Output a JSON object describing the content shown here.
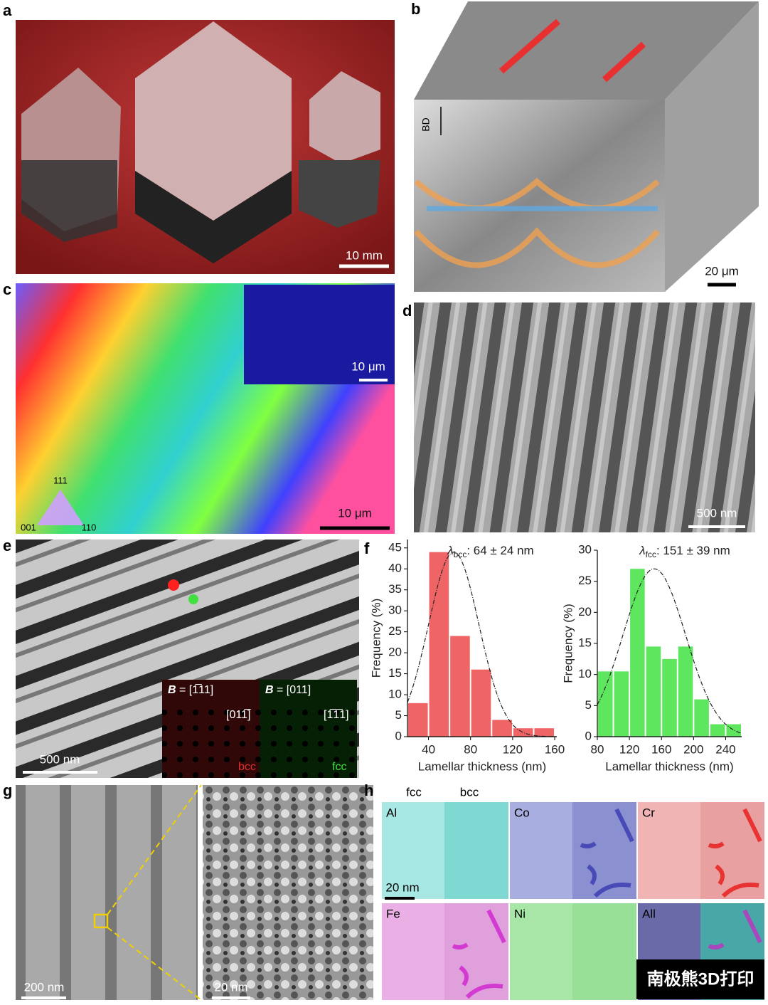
{
  "chart_data": [
    {
      "type": "histogram",
      "title": {
        "symbol": "λ",
        "subscript": "bcc",
        "text": ": 64 ± 24 nm"
      },
      "x_label": "Lamellar thickness (nm)",
      "y_label": "Frequency (%)",
      "bins": [
        20,
        40,
        60,
        80,
        100,
        120,
        140,
        160
      ],
      "values": [
        8,
        44,
        24,
        16,
        4,
        2,
        2
      ],
      "color": "#ef6464",
      "xlim": [
        20,
        162
      ],
      "ylim": [
        0,
        47
      ],
      "xticks": [
        40,
        80,
        120,
        160
      ],
      "yticks": [
        0,
        5,
        10,
        15,
        20,
        25,
        30,
        35,
        40,
        45
      ],
      "fit_mean": 64,
      "fit_sd": 24,
      "fit_peak": 44
    },
    {
      "type": "histogram",
      "title": {
        "symbol": "λ",
        "subscript": "fcc",
        "text": ": 151 ± 39 nm"
      },
      "x_label": "Lamellar thickness (nm)",
      "y_label": "Frequency (%)",
      "bins": [
        80,
        100,
        120,
        140,
        160,
        180,
        200,
        220,
        240,
        260
      ],
      "values": [
        10.5,
        10.5,
        27,
        14.5,
        12.5,
        14.5,
        6,
        2,
        2
      ],
      "color": "#5ee65e",
      "xlim": [
        80,
        260
      ],
      "ylim": [
        0,
        30
      ],
      "xticks": [
        80,
        120,
        160,
        200,
        240
      ],
      "yticks": [
        0,
        5,
        10,
        15,
        20,
        25,
        30
      ],
      "fit_mean": 151,
      "fit_sd": 39,
      "fit_peak": 27
    }
  ],
  "panels": {
    "a": {
      "label": "a",
      "scale_bar": "10 mm"
    },
    "b": {
      "label": "b",
      "axis": "BD",
      "scale_bar": "20 μm"
    },
    "c": {
      "label": "c",
      "key": [
        "111",
        "001",
        "110"
      ],
      "inset_scale_bar": "10 μm",
      "scale_bar": "10 μm"
    },
    "d": {
      "label": "d",
      "scale_bar": "500 nm"
    },
    "e": {
      "label": "e",
      "scale_bar": "500 nm",
      "insets": [
        {
          "zone_symbol": "B",
          "zone": " = [1̅11]",
          "direction": "[011̅]",
          "phase": "bcc"
        },
        {
          "zone_symbol": "B",
          "zone": " = [011]",
          "direction": "[1̅1̅1]",
          "phase": "fcc"
        }
      ]
    },
    "f": {
      "label": "f"
    },
    "g": {
      "label": "g",
      "scale_bar": "200 nm",
      "zoom_scale_bar": "20 nm"
    },
    "h": {
      "label": "h",
      "columns": [
        "fcc",
        "bcc"
      ],
      "maps": [
        "Al",
        "Co",
        "Cr",
        "Fe",
        "Ni",
        "All"
      ],
      "scale_bar": "20 nm"
    }
  },
  "watermark": "南极熊3D打印"
}
